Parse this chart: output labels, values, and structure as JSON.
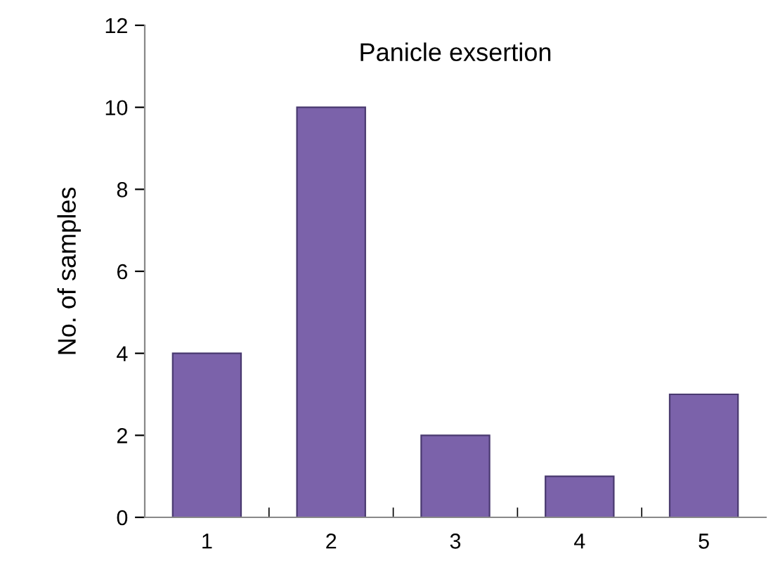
{
  "chart_data": {
    "type": "bar",
    "title": "Panicle exsertion",
    "ylabel": "No. of samples",
    "categories": [
      "1",
      "2",
      "3",
      "4",
      "5"
    ],
    "values": [
      4,
      10,
      2,
      1,
      3
    ],
    "color": "#7b62aa",
    "ylim": [
      0,
      12
    ],
    "yticks": [
      0,
      2,
      4,
      6,
      8,
      10,
      12
    ],
    "grid": false,
    "legend": false
  }
}
